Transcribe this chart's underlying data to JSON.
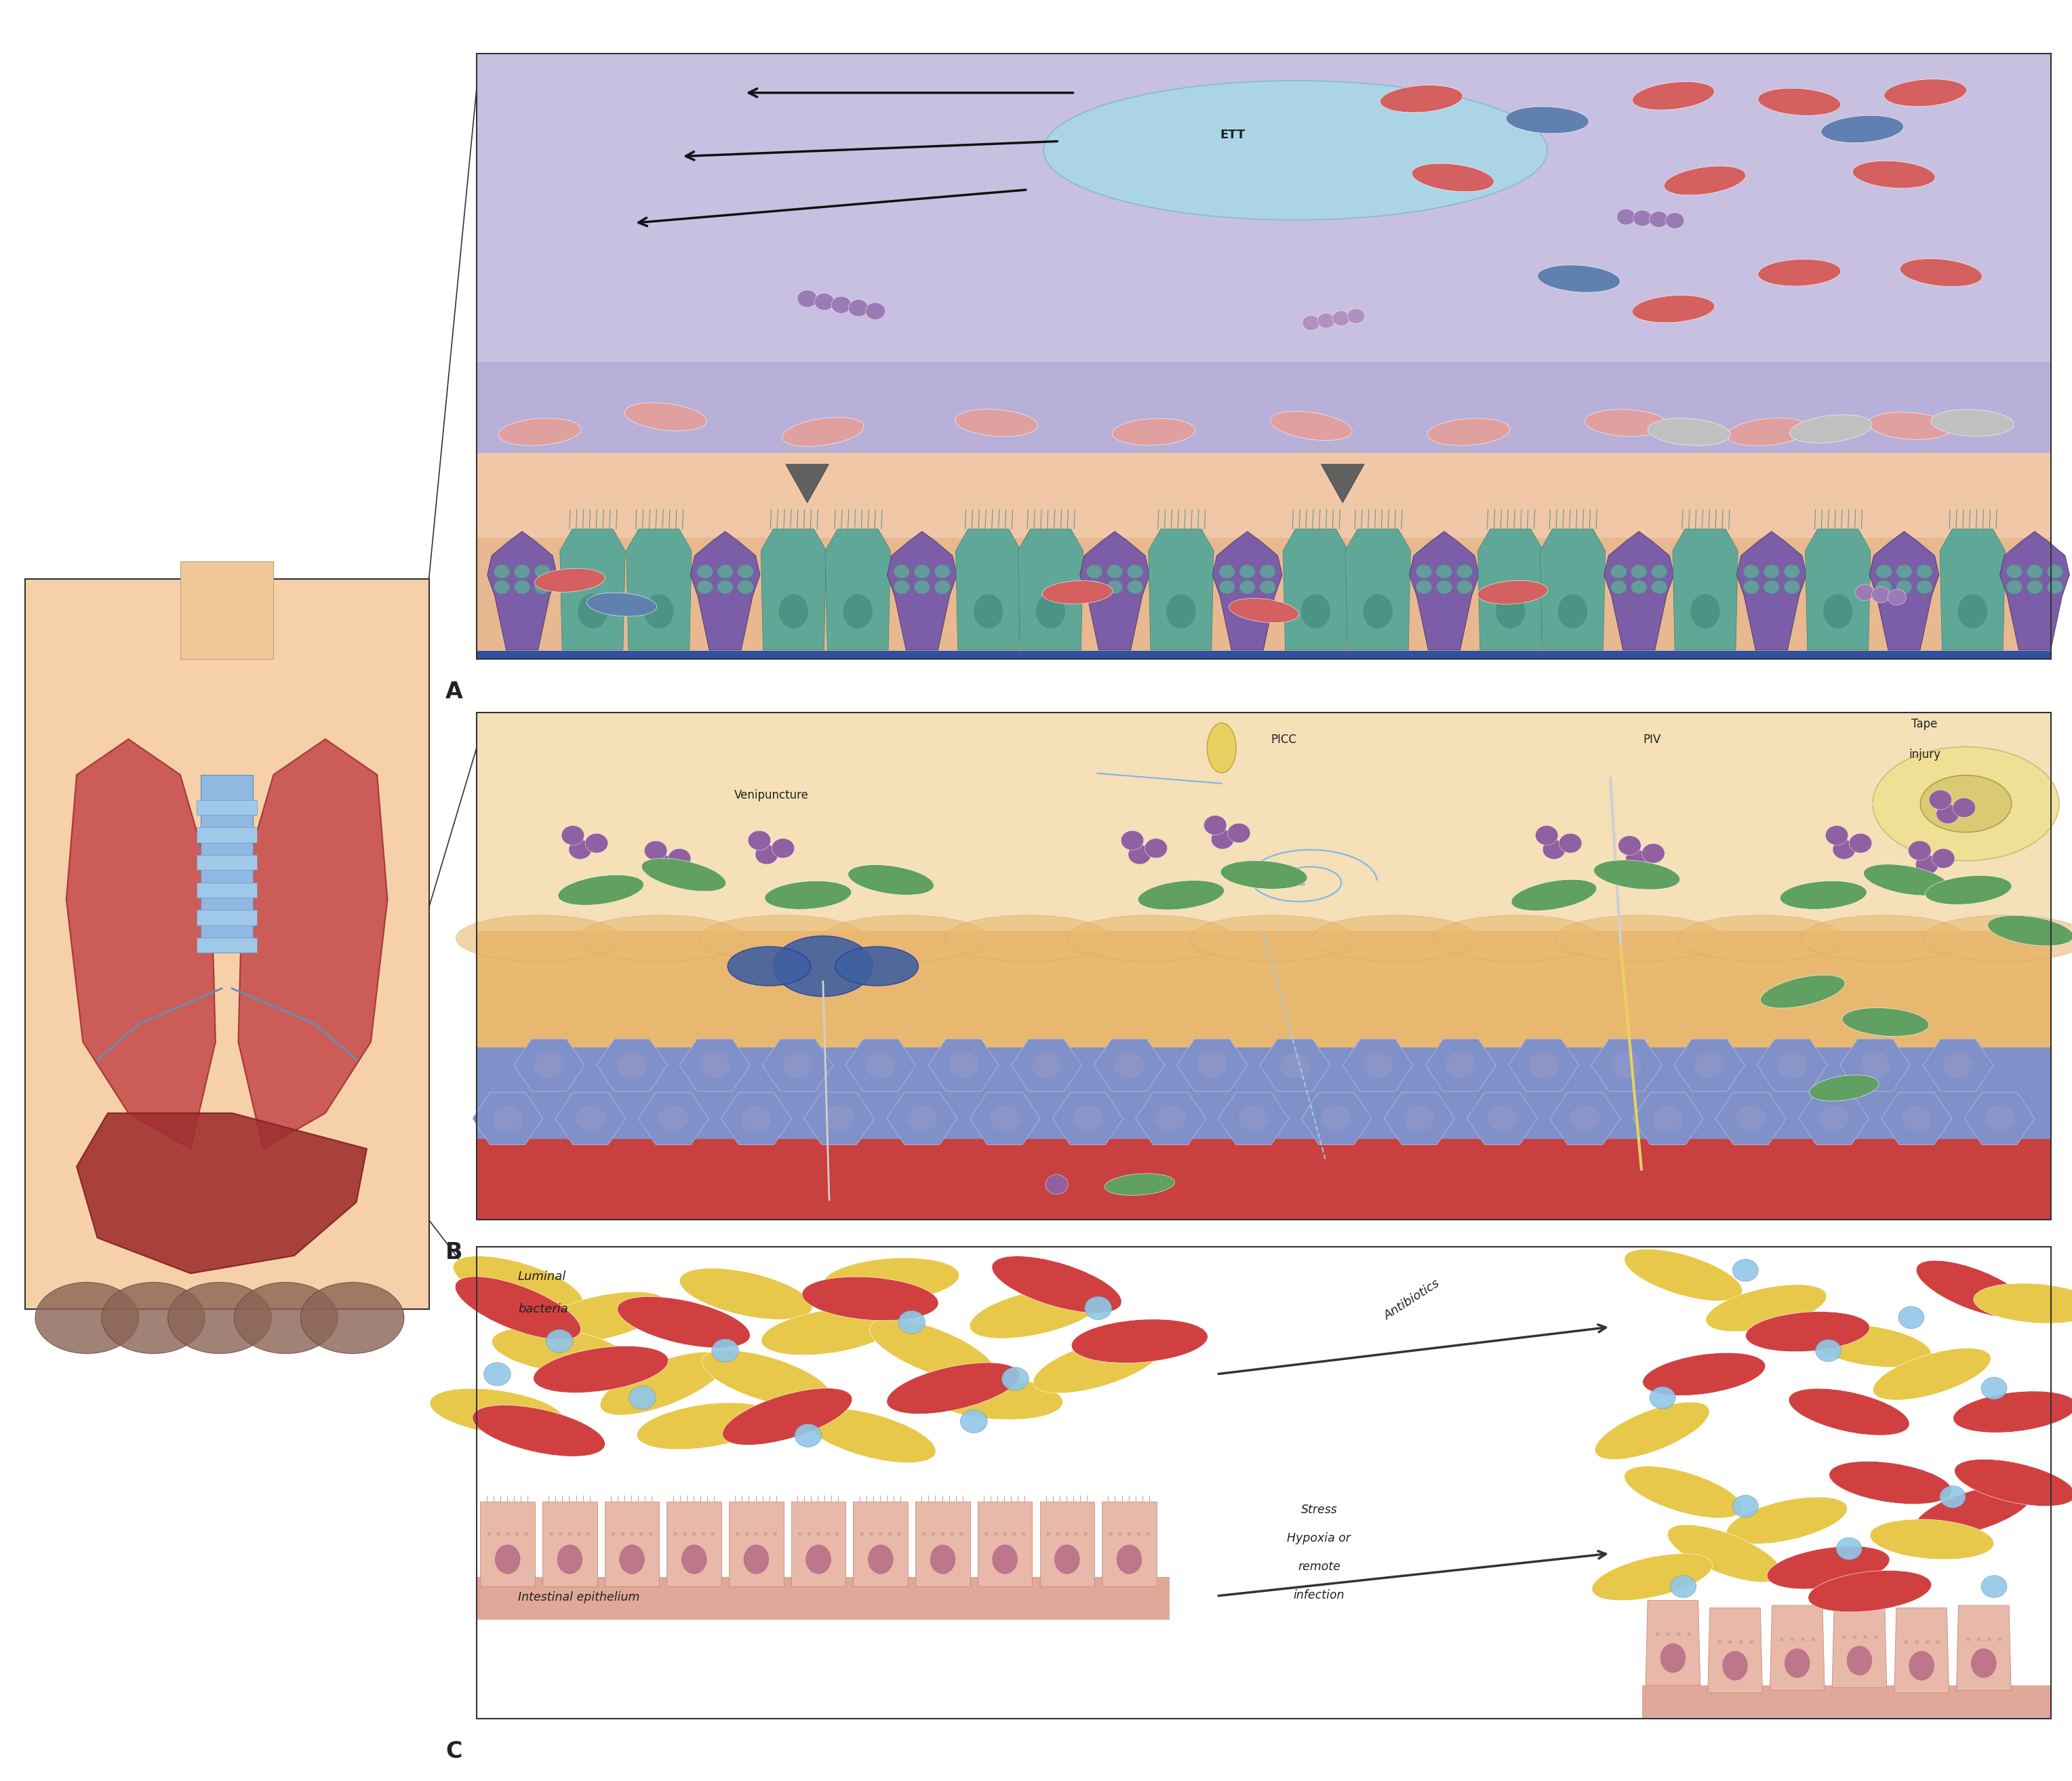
{
  "figure_width": 30.56,
  "figure_height": 26.27,
  "bg_color": "#ffffff",
  "panel_A_label": "A",
  "panel_B_label": "B",
  "panel_C_label": "C",
  "colors": {
    "lumen_purple": "#c8c0e0",
    "mucus_blue": "#b8b0d8",
    "tissue_peach": "#f0c8a8",
    "cell_layer_peach": "#e8b890",
    "goblet_purple": "#7b5ea7",
    "ciliated_teal": "#5fa898",
    "ETT_blue": "#a8d8e8",
    "arrow_black": "#111111",
    "arrowhead_gray": "#606060",
    "bacteria_chain": "#9b7bb5",
    "bacteria_red": "#d46060",
    "bacteria_blue": "#6080b0",
    "bacteria_pink": "#e0a0a0",
    "bacteria_gray": "#c0c0c0",
    "skin_surface": "#f5e0b8",
    "skin_tan": "#e8b870",
    "dermis_blue": "#8090c8",
    "blood_red": "#c84040",
    "skin_cell_blue": "#8090c8",
    "bacteria_purple_B": "#9060a0",
    "bacteria_green_B": "#60a060",
    "GI_bg": "#ffffff",
    "GI_epithelium": "#e8b8a8",
    "GI_nucleus": "#b06080",
    "bacteria_yellow_C": "#e8c84a",
    "bacteria_red_C": "#d04040",
    "bacteria_blue_C": "#90c8e8",
    "body_skin": "#f5d0a8",
    "lung_red": "#c85050",
    "lung_outline": "#a03030",
    "trachea_blue": "#90b8e0",
    "liver_red": "#a03030",
    "intestine_brown": "#8B6355"
  }
}
